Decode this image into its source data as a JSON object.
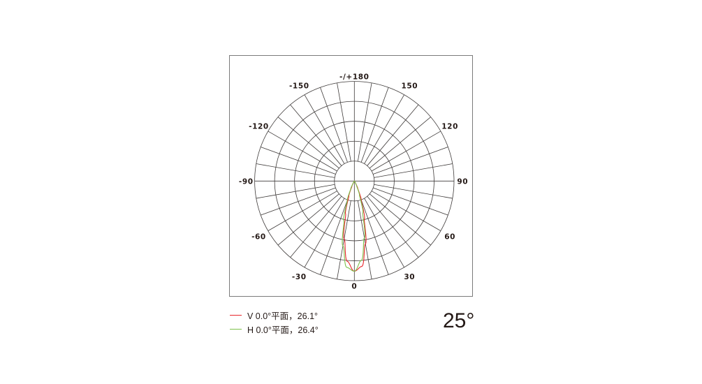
{
  "chart_data": {
    "type": "polar",
    "title": "",
    "angle_tick_labels": [
      {
        "angle": 180,
        "label": "-/+180"
      },
      {
        "angle": 150,
        "label": "150"
      },
      {
        "angle": 120,
        "label": "120"
      },
      {
        "angle": 90,
        "label": "90"
      },
      {
        "angle": 60,
        "label": "60"
      },
      {
        "angle": 30,
        "label": "30"
      },
      {
        "angle": 0,
        "label": "0"
      },
      {
        "angle": -30,
        "label": "-30"
      },
      {
        "angle": -60,
        "label": "-60"
      },
      {
        "angle": -90,
        "label": "-90"
      },
      {
        "angle": -120,
        "label": "-120"
      },
      {
        "angle": -150,
        "label": "-150"
      }
    ],
    "radial_range": [
      0,
      1
    ],
    "radial_circles": 5,
    "spoke_step_deg": 10,
    "grid": true,
    "legend_position": "bottom-left",
    "angles": [
      -40,
      -35,
      -30,
      -25,
      -20,
      -15,
      -10,
      -5,
      0,
      5,
      10,
      15,
      20,
      25,
      30,
      35,
      40
    ],
    "series": [
      {
        "name": "V 0.0°平面，26.1°",
        "color": "#e8262b",
        "values": [
          0.001,
          0.004,
          0.016,
          0.058,
          0.16,
          0.34,
          0.59,
          0.81,
          0.905,
          0.86,
          0.64,
          0.39,
          0.2,
          0.08,
          0.025,
          0.006,
          0.001
        ]
      },
      {
        "name": "H 0.0°平面，26.4°",
        "color": "#7cc24a",
        "values": [
          0.001,
          0.006,
          0.026,
          0.085,
          0.21,
          0.41,
          0.66,
          0.87,
          0.905,
          0.8,
          0.58,
          0.33,
          0.15,
          0.055,
          0.015,
          0.004,
          0.001
        ]
      }
    ]
  },
  "beam_angle_label": "25°"
}
